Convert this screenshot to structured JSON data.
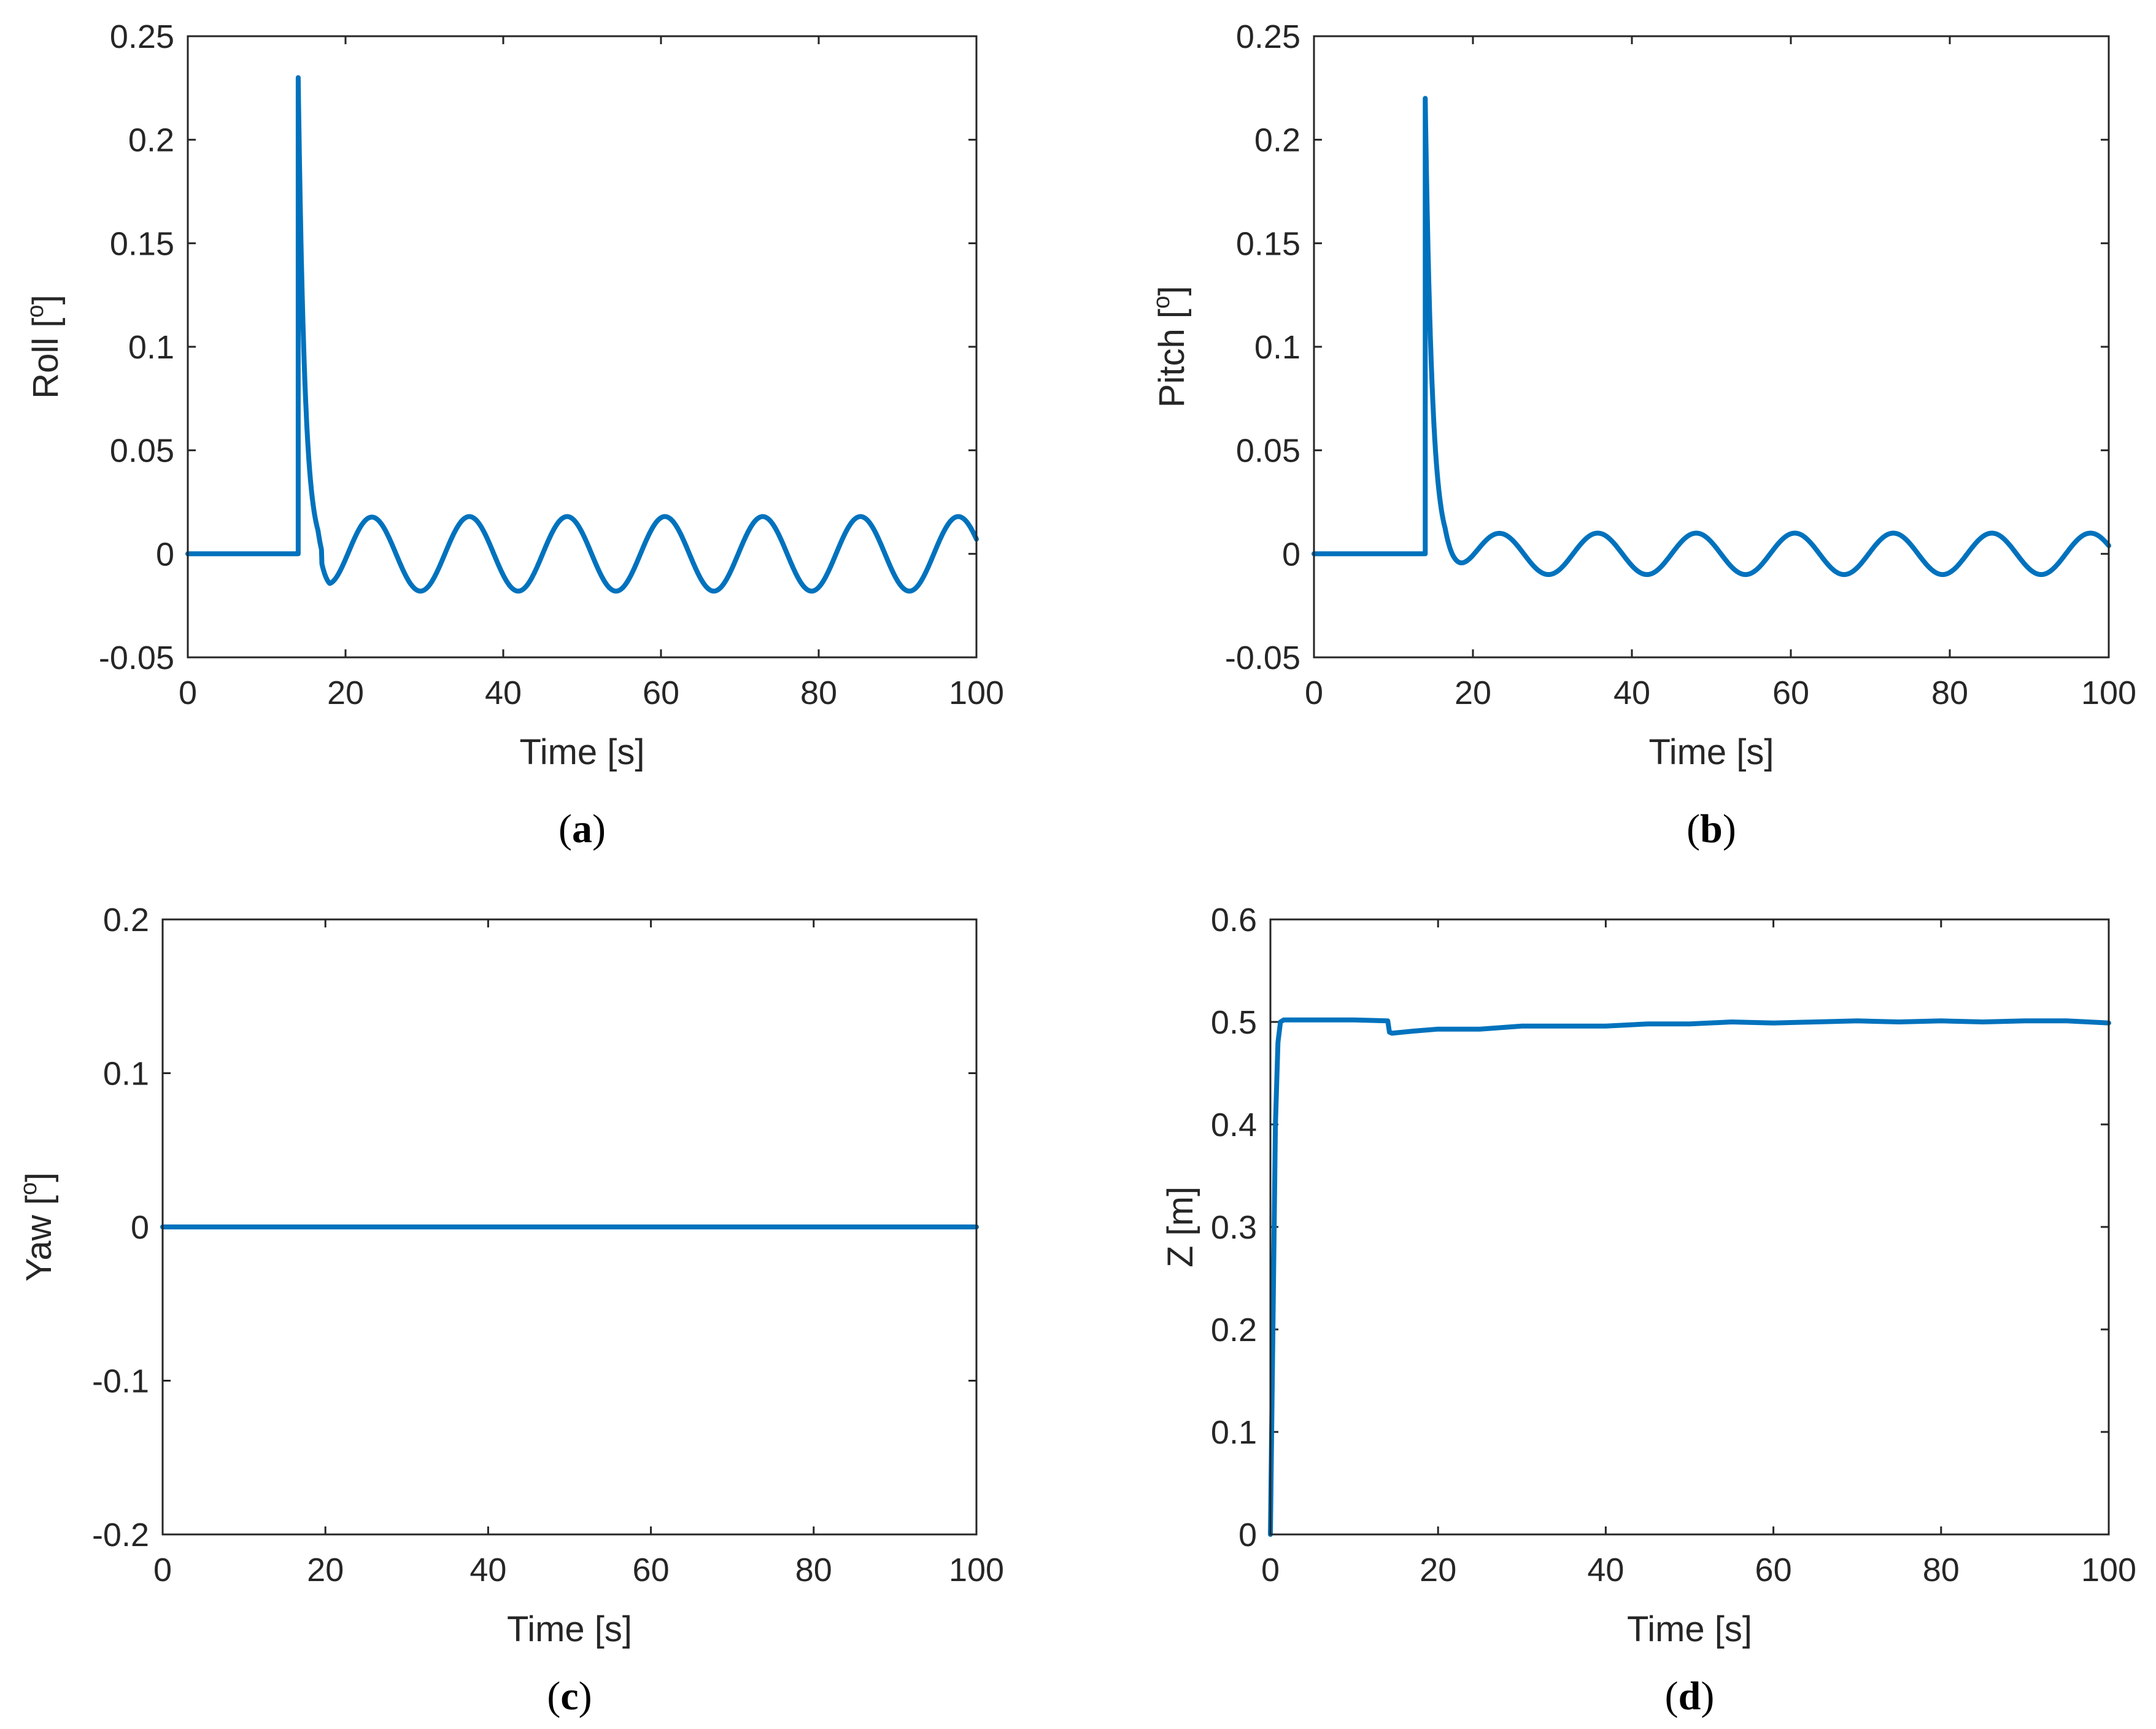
{
  "figure": {
    "panels": [
      {
        "id": "a",
        "caption_letter": "a"
      },
      {
        "id": "b",
        "caption_letter": "b"
      },
      {
        "id": "c",
        "caption_letter": "c"
      },
      {
        "id": "d",
        "caption_letter": "d"
      }
    ]
  },
  "chart_data": [
    {
      "id": "a",
      "type": "line",
      "xlabel": "Time [s]",
      "ylabel": "Roll [°]",
      "ylabel_base": "Roll [",
      "ylabel_sup": "o",
      "ylabel_end": "]",
      "xlim": [
        0,
        100
      ],
      "ylim": [
        -0.05,
        0.25
      ],
      "xticks": [
        0,
        20,
        40,
        60,
        80,
        100
      ],
      "yticks": [
        -0.05,
        0,
        0.05,
        0.1,
        0.15,
        0.2,
        0.25
      ],
      "xtick_labels": [
        "0",
        "20",
        "40",
        "60",
        "80",
        "100"
      ],
      "ytick_labels": [
        "-0.05",
        "0",
        "0.05",
        "0.1",
        "0.15",
        "0.2",
        "0.25"
      ],
      "color": "#0072BD",
      "series": [
        {
          "name": "Roll",
          "model": "roll",
          "params": {
            "step_time": 14,
            "peak": 0.23,
            "decay_rate": 1.2,
            "amplitude": 0.018,
            "period": 12.4,
            "peak_t1": 23.3,
            "undershoot": -0.006
          }
        }
      ]
    },
    {
      "id": "b",
      "type": "line",
      "xlabel": "Time [s]",
      "ylabel": "Pitch [°]",
      "ylabel_base": "Pitch [",
      "ylabel_sup": "o",
      "ylabel_end": "]",
      "xlim": [
        0,
        100
      ],
      "ylim": [
        -0.05,
        0.25
      ],
      "xticks": [
        0,
        20,
        40,
        60,
        80,
        100
      ],
      "yticks": [
        -0.05,
        0,
        0.05,
        0.1,
        0.15,
        0.2,
        0.25
      ],
      "xtick_labels": [
        "0",
        "20",
        "40",
        "60",
        "80",
        "100"
      ],
      "ytick_labels": [
        "-0.05",
        "0",
        "0.05",
        "0.1",
        "0.15",
        "0.2",
        "0.25"
      ],
      "color": "#0072BD",
      "series": [
        {
          "name": "Pitch",
          "model": "roll",
          "params": {
            "step_time": 14,
            "peak": 0.22,
            "decay_rate": 1.15,
            "amplitude": 0.01,
            "period": 12.4,
            "peak_t1": 23.3,
            "undershoot": 0.0
          }
        }
      ]
    },
    {
      "id": "c",
      "type": "line",
      "xlabel": "Time [s]",
      "ylabel": "Yaw [°]",
      "ylabel_base": "Yaw [",
      "ylabel_sup": "o",
      "ylabel_end": "]",
      "xlim": [
        0,
        100
      ],
      "ylim": [
        -0.2,
        0.2
      ],
      "xticks": [
        0,
        20,
        40,
        60,
        80,
        100
      ],
      "yticks": [
        -0.2,
        -0.1,
        0,
        0.1,
        0.2
      ],
      "xtick_labels": [
        "0",
        "20",
        "40",
        "60",
        "80",
        "100"
      ],
      "ytick_labels": [
        "-0.2",
        "-0.1",
        "0",
        "0.1",
        "0.2"
      ],
      "color": "#0072BD",
      "series": [
        {
          "name": "Yaw",
          "model": "points",
          "x": [
            0,
            100
          ],
          "y": [
            0,
            0
          ]
        }
      ]
    },
    {
      "id": "d",
      "type": "line",
      "xlabel": "Time [s]",
      "ylabel": "Z [m]",
      "ylabel_base": "Z [m]",
      "ylabel_sup": "",
      "ylabel_end": "",
      "xlim": [
        0,
        100
      ],
      "ylim": [
        0,
        0.6
      ],
      "xticks": [
        0,
        20,
        40,
        60,
        80,
        100
      ],
      "yticks": [
        0,
        0.1,
        0.2,
        0.3,
        0.4,
        0.5,
        0.6
      ],
      "xtick_labels": [
        "0",
        "20",
        "40",
        "60",
        "80",
        "100"
      ],
      "ytick_labels": [
        "0",
        "0.1",
        "0.2",
        "0.3",
        "0.4",
        "0.5",
        "0.6"
      ],
      "color": "#0072BD",
      "series": [
        {
          "name": "Z",
          "model": "points",
          "x": [
            0,
            0.3,
            0.6,
            0.9,
            1.2,
            1.6,
            2.5,
            5,
            10,
            14,
            14.2,
            14.5,
            17,
            20,
            25,
            30,
            35,
            40,
            45,
            50,
            55,
            60,
            65,
            70,
            75,
            80,
            85,
            90,
            95,
            100
          ],
          "y": [
            0,
            0.2,
            0.4,
            0.48,
            0.5,
            0.502,
            0.502,
            0.502,
            0.502,
            0.501,
            0.49,
            0.489,
            0.491,
            0.493,
            0.493,
            0.496,
            0.496,
            0.496,
            0.498,
            0.498,
            0.5,
            0.499,
            0.5,
            0.501,
            0.5,
            0.501,
            0.5,
            0.501,
            0.501,
            0.499
          ]
        }
      ]
    }
  ]
}
